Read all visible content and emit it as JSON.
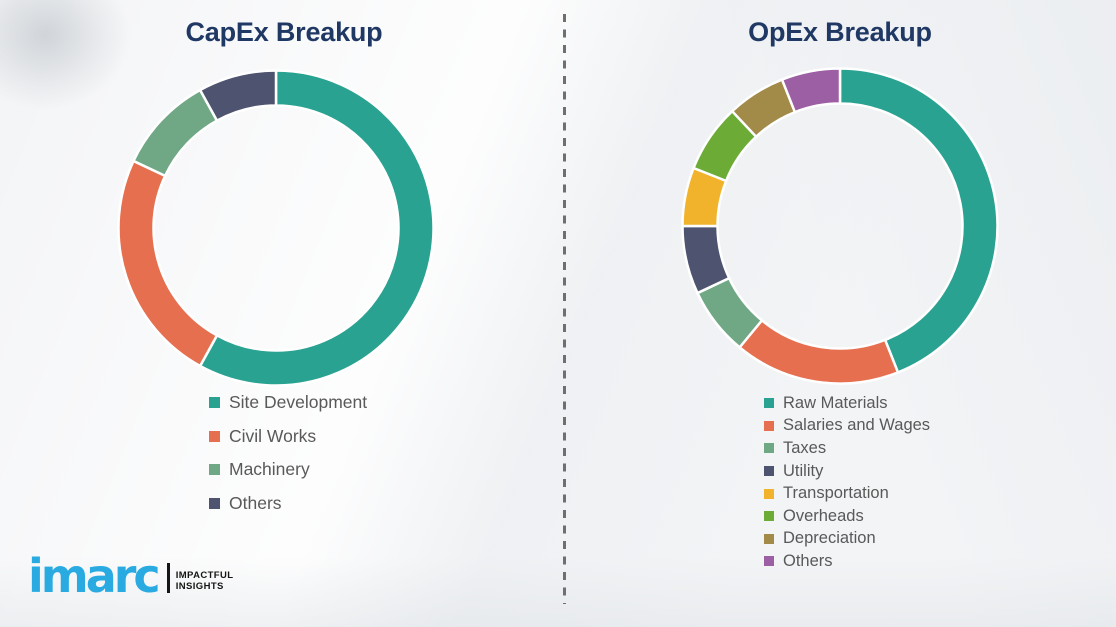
{
  "page": {
    "background_color": "#f3f4f6",
    "divider": "vertical dashed line between the two charts"
  },
  "colors": {
    "title_text": "#1F3864",
    "legend_text": "#595959",
    "divider": "#6f6f6f",
    "slice_gap": "#ffffff",
    "brand_blue": "#29ABE2",
    "tagline_black": "#151515"
  },
  "chart_data": [
    {
      "type": "pie",
      "subtype": "donut",
      "title": "CapEx Breakup",
      "labels": [
        "Site Development",
        "Civil Works",
        "Machinery",
        "Others"
      ],
      "values": [
        58,
        24,
        10,
        8
      ],
      "unit": "percent (estimated from arc angles; no data labels shown)",
      "colors": [
        "#2AA291",
        "#E66F4F",
        "#70A886",
        "#4E5470"
      ],
      "start_angle_deg": 0,
      "direction": "clockwise",
      "legend_position": "below-left",
      "data_labels": "none"
    },
    {
      "type": "pie",
      "subtype": "donut",
      "title": "OpEx Breakup",
      "labels": [
        "Raw Materials",
        "Salaries and Wages",
        "Taxes",
        "Utility",
        "Transportation",
        "Overheads",
        "Depreciation",
        "Others"
      ],
      "values": [
        44,
        17,
        7,
        7,
        6,
        7,
        6,
        6
      ],
      "unit": "percent (estimated from arc angles; no data labels shown)",
      "colors": [
        "#2AA291",
        "#E66F4F",
        "#70A886",
        "#4E5470",
        "#F1B32B",
        "#6CAC36",
        "#A28A49",
        "#9C5FA3"
      ],
      "start_angle_deg": 0,
      "direction": "clockwise",
      "legend_position": "below-left",
      "data_labels": "none"
    }
  ],
  "logo": {
    "brand": "imarc",
    "tagline_line1": "IMPACTFUL",
    "tagline_line2": "INSIGHTS"
  }
}
